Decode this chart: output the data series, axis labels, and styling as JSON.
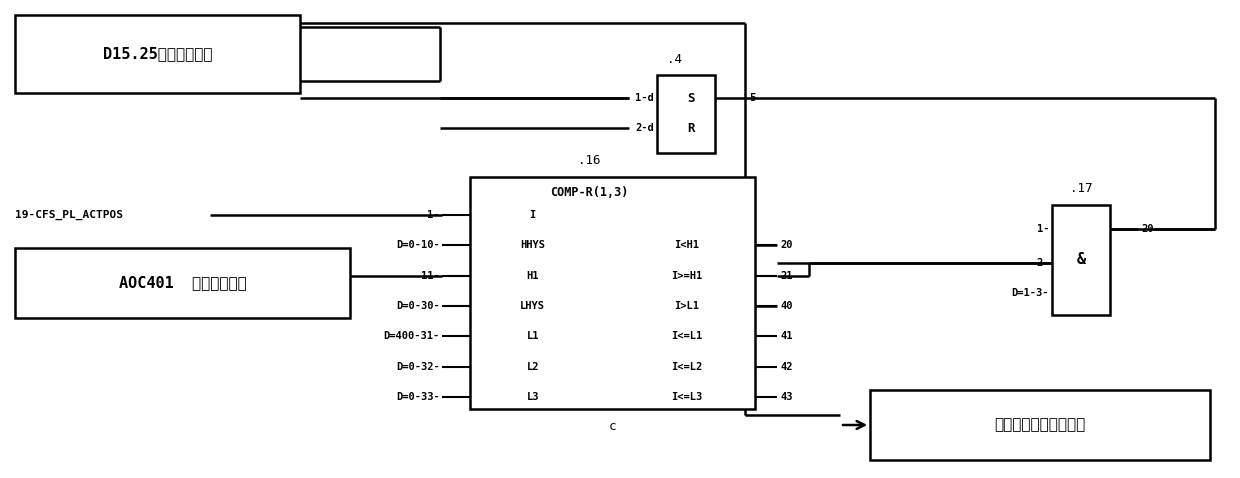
{
  "bg": "#ffffff",
  "lc": "#000000",
  "figsize": [
    12.4,
    4.78
  ],
  "dpi": 100,
  "box1_label": "D15.25旗形开关信号",
  "box2_label": "AOC401  高度设定参数",
  "actpos_label": "19-CFS_PL_ACTPOS",
  "sr_header": ".4",
  "comp_header": ".16",
  "comp_title": "COMP-R(1,3)",
  "and_header": ".17",
  "and_label": "&",
  "out_label": "托板快速下降启动信号",
  "comp_bottom_label": "c",
  "comp_rows_left": [
    "I",
    "HHYS",
    "H1",
    "LHYS",
    "L1",
    "L2",
    "L3"
  ],
  "comp_rows_right": [
    "",
    "I<H1",
    "I>=H1",
    "I>L1",
    "I<=L1",
    "I<=L2",
    "I<=L3"
  ],
  "comp_left_inputs": [
    "1-",
    "D=0-10-",
    "11-",
    "D=0-30-",
    "D=400-31-",
    "D=0-32-",
    "D=0-33-"
  ],
  "comp_right_outputs": [
    "",
    "20",
    "21",
    "40",
    "41",
    "42",
    "43"
  ],
  "sr_left_labels": [
    "1-d",
    "2-d"
  ],
  "sr_pins": [
    "S",
    "R"
  ],
  "sr_output": "5"
}
